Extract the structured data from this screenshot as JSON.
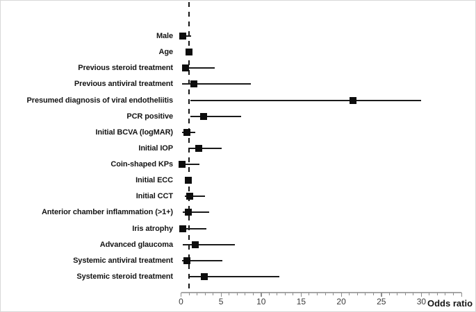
{
  "chart_data": {
    "type": "scatter",
    "subtype": "forest-plot",
    "title": "",
    "xlabel": "Odds ratio",
    "ylabel": "",
    "xlim": [
      0,
      35
    ],
    "x_major_ticks": [
      0,
      5,
      10,
      15,
      20,
      25,
      30
    ],
    "x_minor_tick_step": 1,
    "x_axis_end_tick": 35,
    "reference_line_x": 1,
    "grid": false,
    "legend_position": "none",
    "marker_shape": "filled-square",
    "rows": [
      {
        "label": "Male",
        "odds_ratio": 0.2,
        "ci_low": 0.05,
        "ci_high": 1.3
      },
      {
        "label": "Age",
        "odds_ratio": 1.0,
        "ci_low": 0.9,
        "ci_high": 1.1
      },
      {
        "label": "Previous steroid treatment",
        "odds_ratio": 0.6,
        "ci_low": 0.1,
        "ci_high": 4.2
      },
      {
        "label": "Previous antiviral treatment",
        "odds_ratio": 1.6,
        "ci_low": 0.1,
        "ci_high": 8.7
      },
      {
        "label": "Presumed diagnosis of viral endotheliitis",
        "odds_ratio": 21.5,
        "ci_low": 1.2,
        "ci_high": 30.0
      },
      {
        "label": "PCR positive",
        "odds_ratio": 2.8,
        "ci_low": 1.2,
        "ci_high": 7.5
      },
      {
        "label": "Initial BCVA (logMAR)",
        "odds_ratio": 0.7,
        "ci_low": 0.1,
        "ci_high": 1.8
      },
      {
        "label": "Initial IOP",
        "odds_ratio": 2.2,
        "ci_low": 1.1,
        "ci_high": 5.1
      },
      {
        "label": "Coin-shaped KPs",
        "odds_ratio": 0.1,
        "ci_low": 0.05,
        "ci_high": 2.3
      },
      {
        "label": "Initial ECC",
        "odds_ratio": 0.9,
        "ci_low": 0.85,
        "ci_high": 1.0
      },
      {
        "label": "Initial CCT",
        "odds_ratio": 1.1,
        "ci_low": 0.5,
        "ci_high": 3.0
      },
      {
        "label": "Anterior chamber inflammation (>1+)",
        "odds_ratio": 0.9,
        "ci_low": 0.2,
        "ci_high": 3.5
      },
      {
        "label": "Iris atrophy",
        "odds_ratio": 0.2,
        "ci_low": 0.05,
        "ci_high": 3.2
      },
      {
        "label": "Advanced glaucoma",
        "odds_ratio": 1.8,
        "ci_low": 0.2,
        "ci_high": 6.7
      },
      {
        "label": "Systemic antiviral treatment",
        "odds_ratio": 0.7,
        "ci_low": 0.1,
        "ci_high": 5.2
      },
      {
        "label": "Systemic steroid treatment",
        "odds_ratio": 2.9,
        "ci_low": 0.9,
        "ci_high": 12.3
      }
    ]
  },
  "colors": {
    "background": "#ffffff",
    "marker": "#0d0d0d",
    "ci_line": "#1a1a1a",
    "reference_line": "#141414",
    "axis_line": "#a6a6a6",
    "tick": "#8c8c8c",
    "tick_label": "#3a3a3a",
    "row_label": "#141414",
    "axis_title": "#151515"
  }
}
